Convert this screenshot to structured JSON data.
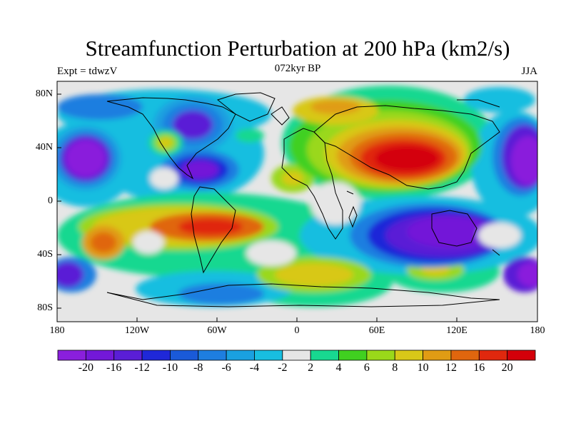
{
  "title": "Streamfunction Perturbation at 200 hPa (km2/s)",
  "left_string": "Expt = tdwzV",
  "center_string": "072kyr BP",
  "right_string": "JJA",
  "lat_labels": [
    "80N",
    "40N",
    "0",
    "40S",
    "80S"
  ],
  "lon_labels": [
    "180",
    "120W",
    "60W",
    "0",
    "60E",
    "120E",
    "180"
  ],
  "colorbar": {
    "labels": [
      "-20",
      "-16",
      "-12",
      "-10",
      "-8",
      "-6",
      "-4",
      "-2",
      "2",
      "4",
      "6",
      "8",
      "10",
      "12",
      "16",
      "20"
    ],
    "colors": [
      "#8a1fdc",
      "#7318d8",
      "#5a1ed6",
      "#1f28d8",
      "#1a5ad8",
      "#1e7ee0",
      "#1aa0e0",
      "#18bee0",
      "#e6e6e6",
      "#18d890",
      "#40d020",
      "#9ad81a",
      "#d8c818",
      "#e09c14",
      "#e0660e",
      "#e0280e",
      "#d4000a"
    ]
  }
}
